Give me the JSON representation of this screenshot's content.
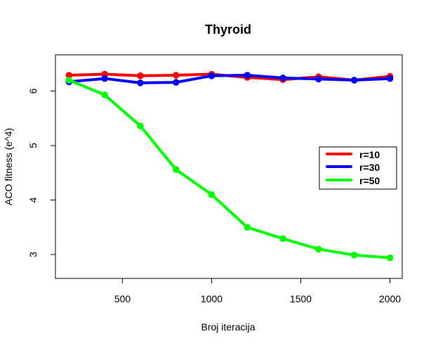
{
  "chart_data": {
    "type": "line",
    "title": "Thyroid",
    "xlabel": "Broj iteracija",
    "ylabel": "ACO fitness (e^4)",
    "x": [
      200,
      400,
      600,
      800,
      1000,
      1200,
      1400,
      1600,
      1800,
      2000
    ],
    "xlim": [
      200,
      2000
    ],
    "ylim": [
      2.93,
      6.31
    ],
    "xticks": [
      500,
      1000,
      1500,
      2000
    ],
    "yticks": [
      3,
      4,
      5,
      6
    ],
    "xtick_labels": [
      "500",
      "1000",
      "1500",
      "2000"
    ],
    "ytick_labels": [
      "3",
      "4",
      "5",
      "6"
    ],
    "grid": false,
    "legend_position": "right",
    "series": [
      {
        "name": "r=10",
        "color": "#ff0000",
        "values": [
          6.29,
          6.31,
          6.28,
          6.29,
          6.31,
          6.25,
          6.21,
          6.26,
          6.2,
          6.27
        ]
      },
      {
        "name": "r=30",
        "color": "#0000ff",
        "values": [
          6.17,
          6.23,
          6.15,
          6.16,
          6.28,
          6.29,
          6.24,
          6.22,
          6.2,
          6.23
        ]
      },
      {
        "name": "r=50",
        "color": "#00ff00",
        "values": [
          6.2,
          5.93,
          5.36,
          4.56,
          4.1,
          3.5,
          3.29,
          3.1,
          2.99,
          2.94
        ]
      }
    ]
  }
}
